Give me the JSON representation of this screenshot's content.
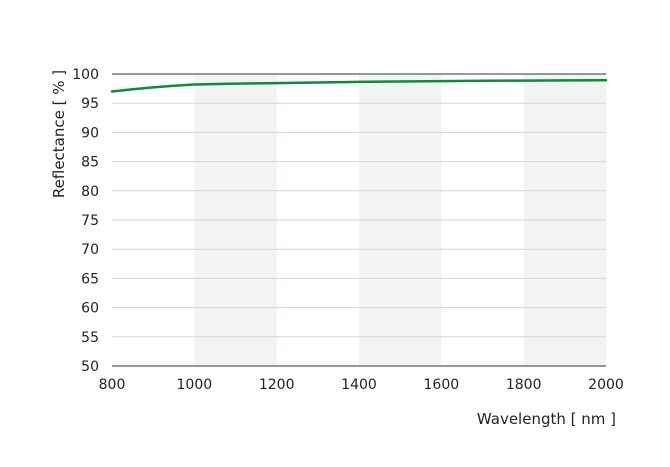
{
  "chart_data": {
    "type": "line",
    "xlabel": "Wavelength [ nm ]",
    "ylabel": "Reflectance [ % ]",
    "xlim": [
      800,
      2000
    ],
    "ylim": [
      50,
      100
    ],
    "x_ticks": [
      "800",
      "1000",
      "1200",
      "1400",
      "1600",
      "1800",
      "2000"
    ],
    "y_ticks": [
      "100",
      "95",
      "90",
      "85",
      "80",
      "75",
      "70",
      "65",
      "60",
      "55",
      "50"
    ],
    "grid": "horizontal",
    "shaded_bands": [
      [
        1000,
        1200
      ],
      [
        1400,
        1600
      ],
      [
        1800,
        2000
      ]
    ],
    "series": [
      {
        "x": [
          800,
          850,
          900,
          950,
          1000,
          1100,
          1200,
          1300,
          1400,
          1500,
          1600,
          1700,
          1800,
          1900,
          2000
        ],
        "values": [
          97.0,
          97.4,
          97.7,
          98.0,
          98.2,
          98.35,
          98.45,
          98.55,
          98.65,
          98.72,
          98.78,
          98.83,
          98.87,
          98.9,
          98.93
        ]
      }
    ],
    "colors": {
      "line": "#0b8c3c",
      "band": "#f2f3f3",
      "grid": "#d6d6d6",
      "axis": "#333333"
    }
  }
}
